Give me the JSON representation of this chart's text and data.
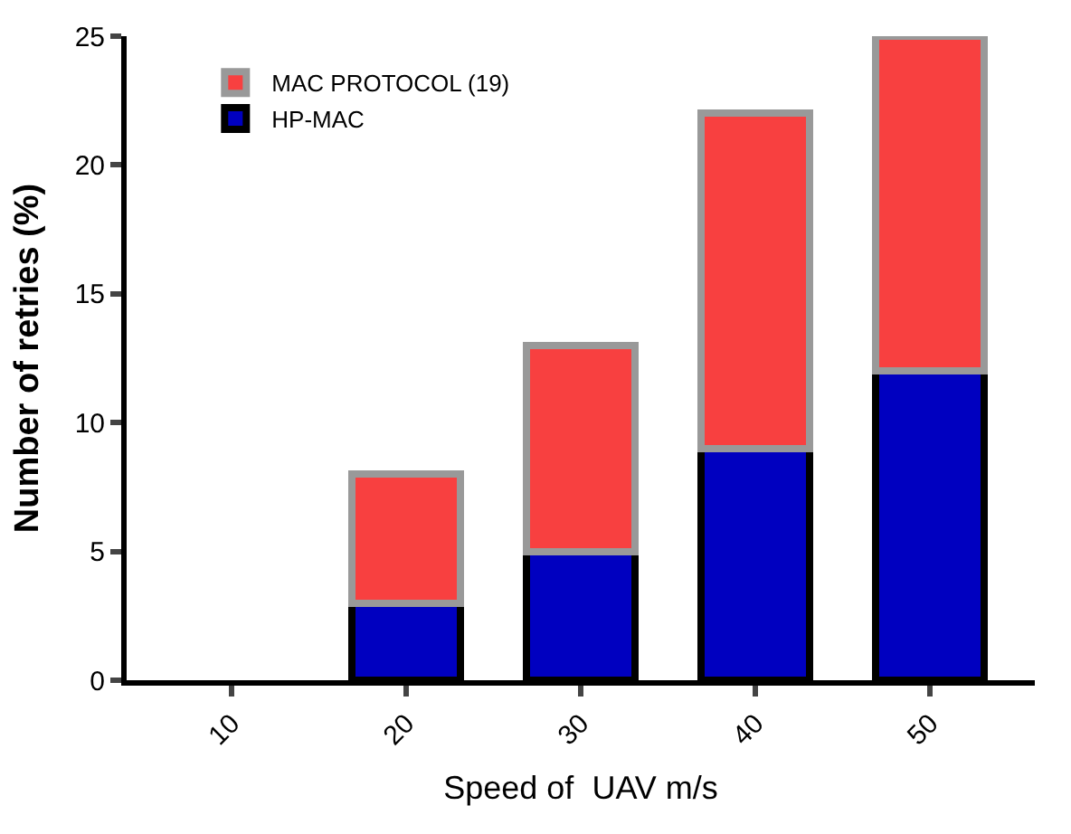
{
  "chart_data": {
    "type": "bar",
    "stacked": true,
    "categories": [
      "10",
      "20",
      "30",
      "40",
      "50"
    ],
    "series": [
      {
        "name": "HP-MAC",
        "color": "#0000c0",
        "values": [
          null,
          3,
          5,
          9,
          12
        ]
      },
      {
        "name": "MAC PROTOCOL (19)",
        "color": "#f84040",
        "values": [
          null,
          5,
          8,
          13,
          13
        ]
      }
    ],
    "xlabel": "Speed of  UAV m/s",
    "ylabel": "Number of retries (%)",
    "ylim": [
      0,
      25
    ],
    "yticks": [
      0,
      5,
      10,
      15,
      20,
      25
    ],
    "legend": "top left"
  }
}
